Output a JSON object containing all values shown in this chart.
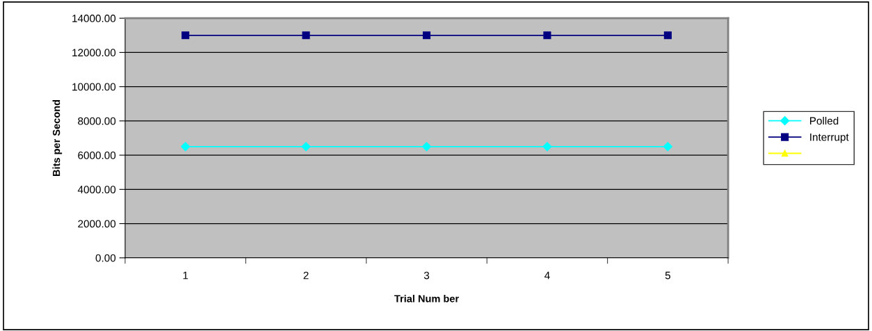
{
  "chart_data": {
    "type": "line",
    "xlabel": "Trial Num ber",
    "ylabel": "Bits per Second",
    "categories": [
      "1",
      "2",
      "3",
      "4",
      "5"
    ],
    "series": [
      {
        "name": "Polled",
        "color": "#00ffff",
        "marker": "diamond",
        "values": [
          6500,
          6500,
          6500,
          6500,
          6500
        ]
      },
      {
        "name": "Interrupt",
        "color": "#000080",
        "marker": "square",
        "values": [
          13000,
          13000,
          13000,
          13000,
          13000
        ]
      },
      {
        "color": "#ffff00",
        "marker": "triangle",
        "values": [
          null,
          null,
          null,
          null,
          null
        ]
      }
    ],
    "ylim": [
      0,
      14000
    ],
    "yticks": [
      {
        "value": 0,
        "label": "0.00"
      },
      {
        "value": 2000,
        "label": "2000.00"
      },
      {
        "value": 4000,
        "label": "4000.00"
      },
      {
        "value": 6000,
        "label": "6000.00"
      },
      {
        "value": 8000,
        "label": "8000.00"
      },
      {
        "value": 10000,
        "label": "10000.00"
      },
      {
        "value": 12000,
        "label": "12000.00"
      },
      {
        "value": 14000,
        "label": "14000.00"
      }
    ],
    "grid": "y",
    "legend": "right"
  }
}
